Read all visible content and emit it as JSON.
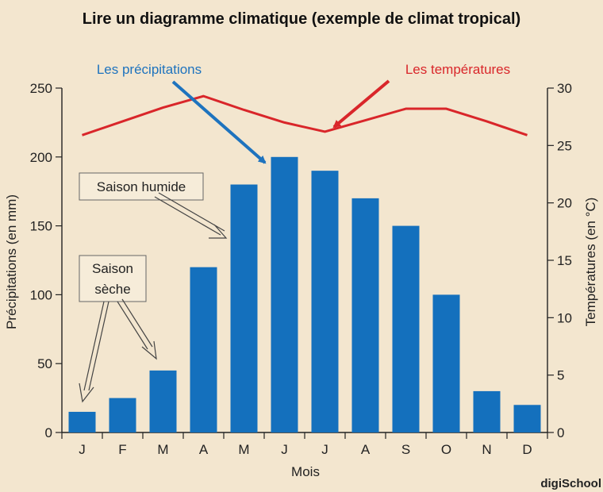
{
  "chart_data": {
    "type": "bar",
    "title": "Lire un diagramme climatique (exemple de climat tropical)",
    "xlabel": "Mois",
    "ylabel_left": "Précipitations (en mm)",
    "ylabel_right": "Températures (en °C)",
    "categories": [
      "J",
      "F",
      "M",
      "A",
      "M",
      "J",
      "J",
      "A",
      "S",
      "O",
      "N",
      "D"
    ],
    "ylim_left": [
      0,
      250
    ],
    "yticks_left": [
      0,
      50,
      100,
      150,
      200,
      250
    ],
    "ylim_right": [
      0,
      30
    ],
    "yticks_right": [
      0,
      5,
      10,
      15,
      20,
      25,
      30
    ],
    "series": [
      {
        "name": "Les précipitations",
        "type": "bar",
        "axis": "left",
        "color": "#1470bd",
        "values": [
          15,
          25,
          45,
          120,
          180,
          200,
          190,
          170,
          150,
          100,
          30,
          20
        ]
      },
      {
        "name": "Les températures",
        "type": "line",
        "axis": "right",
        "color": "#d9262a",
        "values": [
          25.9,
          27.1,
          28.3,
          29.3,
          28.1,
          27,
          26.2,
          27.2,
          28.2,
          28.2,
          27.1,
          25.9
        ]
      }
    ],
    "annotations": [
      {
        "text_lines": [
          "Saison humide"
        ]
      },
      {
        "text_lines": [
          "Saison",
          "sèche"
        ]
      }
    ]
  },
  "logo": {
    "text": "digiSchool"
  },
  "colors": {
    "background": "#f3e6cf",
    "bar": "#1470bd",
    "temperature_line": "#d9262a",
    "precip_label": "#1e73be",
    "temp_label": "#d9262a"
  }
}
